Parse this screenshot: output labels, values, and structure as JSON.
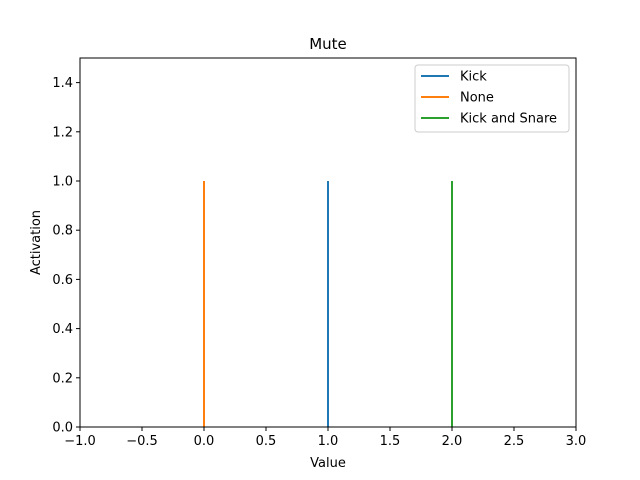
{
  "chart_data": {
    "type": "line",
    "title": "Mute",
    "xlabel": "Value",
    "ylabel": "Activation",
    "xlim": [
      -1.0,
      3.0
    ],
    "ylim": [
      0.0,
      1.5
    ],
    "x_ticks": [
      "−1.0",
      "−0.5",
      "0.0",
      "0.5",
      "1.0",
      "1.5",
      "2.0",
      "2.5",
      "3.0"
    ],
    "x_tick_values": [
      -1.0,
      -0.5,
      0.0,
      0.5,
      1.0,
      1.5,
      2.0,
      2.5,
      3.0
    ],
    "y_ticks": [
      "0.0",
      "0.2",
      "0.4",
      "0.6",
      "0.8",
      "1.0",
      "1.2",
      "1.4"
    ],
    "y_tick_values": [
      0.0,
      0.2,
      0.4,
      0.6,
      0.8,
      1.0,
      1.2,
      1.4
    ],
    "grid": false,
    "legend_position": "top-right",
    "series": [
      {
        "name": "Kick",
        "color": "#1f77b4",
        "x": [
          1.0,
          1.0
        ],
        "y": [
          0.0,
          1.0
        ]
      },
      {
        "name": "None",
        "color": "#ff7f0e",
        "x": [
          0.0,
          0.0
        ],
        "y": [
          0.0,
          1.0
        ]
      },
      {
        "name": "Kick and Snare",
        "color": "#2ca02c",
        "x": [
          2.0,
          2.0
        ],
        "y": [
          0.0,
          1.0
        ]
      }
    ]
  }
}
